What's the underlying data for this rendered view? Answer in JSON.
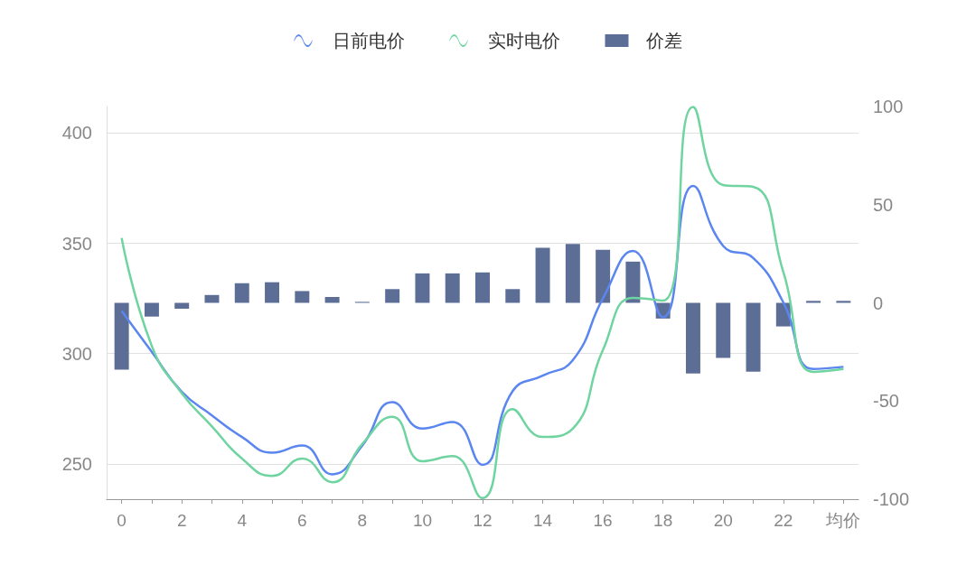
{
  "chart_data": {
    "type": "line",
    "categories": [
      "0",
      null,
      "2",
      null,
      "4",
      null,
      "6",
      null,
      "8",
      null,
      "10",
      null,
      "12",
      null,
      "14",
      null,
      "16",
      null,
      "18",
      null,
      "20",
      null,
      "22",
      null,
      "均价"
    ],
    "series": [
      {
        "name": "日前电价",
        "color": "#5b86f0",
        "values": [
          319.3,
          300.8,
          282.7,
          272,
          262.2,
          255.1,
          258.3,
          245.3,
          258.3,
          278,
          266,
          269,
          249.6,
          283,
          290,
          297,
          325,
          346.5,
          316.5,
          376,
          348.8,
          343.3,
          323.2,
          293,
          294
        ]
      },
      {
        "name": "实时电价",
        "color": "#6fd4a0",
        "values": [
          352.4,
          303.5,
          282,
          267,
          252.4,
          244.5,
          252.4,
          241.7,
          259,
          271.3,
          251.2,
          253.5,
          234.5,
          274.8,
          262.2,
          266,
          301.6,
          325.2,
          324,
          411.8,
          376.4,
          375.6,
          337,
          291.7,
          293
        ]
      },
      {
        "name": "价差",
        "type": "bar",
        "axis": "y2",
        "color": "#5d6e96",
        "values": [
          -34,
          -7,
          -3,
          4,
          10,
          10.5,
          6,
          3,
          0.5,
          7,
          15,
          15,
          15.5,
          7,
          28,
          30,
          27,
          21,
          -8,
          -36,
          -28,
          -35,
          -12,
          1,
          1
        ]
      }
    ],
    "ylim": [
      234,
      412
    ],
    "yticks": [
      250,
      300,
      350,
      400
    ],
    "y2lim": [
      -100,
      100
    ],
    "y2ticks": [
      -100,
      -50,
      0,
      50,
      100
    ],
    "grid": "y",
    "legend": "top",
    "marker": "none",
    "line_style": "solid"
  }
}
